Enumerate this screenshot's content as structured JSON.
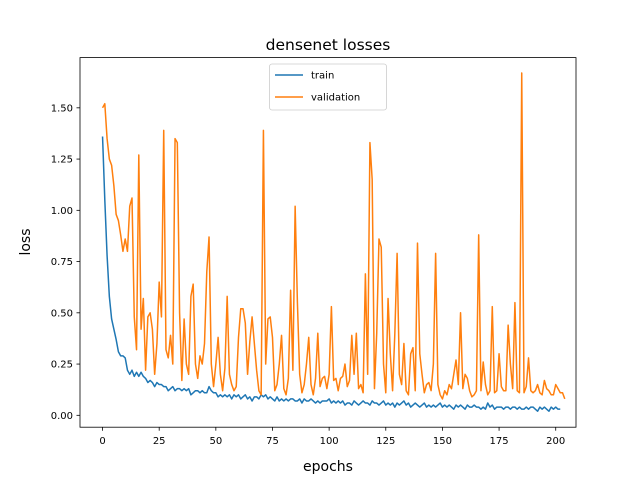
{
  "chart_data": {
    "type": "line",
    "title": "densenet losses",
    "xlabel": "epochs",
    "ylabel": "loss",
    "xlim": [
      -9.95,
      208.95
    ],
    "ylim": [
      -0.058,
      1.745
    ],
    "xticks": [
      0,
      25,
      50,
      75,
      100,
      125,
      150,
      175,
      200
    ],
    "yticks": [
      0.0,
      0.25,
      0.5,
      0.75,
      1.0,
      1.25,
      1.5
    ],
    "ytick_labels": [
      "0.00",
      "0.25",
      "0.50",
      "0.75",
      "1.00",
      "1.25",
      "1.50"
    ],
    "grid": false,
    "legend_position": "top-center",
    "series": [
      {
        "name": "train",
        "color": "#1f77b4",
        "values": [
          1.36,
          1.05,
          0.78,
          0.58,
          0.47,
          0.42,
          0.37,
          0.31,
          0.29,
          0.29,
          0.28,
          0.22,
          0.2,
          0.22,
          0.19,
          0.21,
          0.19,
          0.21,
          0.19,
          0.18,
          0.16,
          0.17,
          0.16,
          0.14,
          0.16,
          0.15,
          0.15,
          0.14,
          0.14,
          0.12,
          0.13,
          0.14,
          0.12,
          0.13,
          0.13,
          0.12,
          0.13,
          0.12,
          0.13,
          0.1,
          0.11,
          0.12,
          0.12,
          0.11,
          0.12,
          0.11,
          0.11,
          0.14,
          0.12,
          0.11,
          0.11,
          0.09,
          0.1,
          0.09,
          0.1,
          0.09,
          0.1,
          0.08,
          0.1,
          0.09,
          0.1,
          0.08,
          0.09,
          0.1,
          0.08,
          0.09,
          0.07,
          0.09,
          0.09,
          0.08,
          0.1,
          0.09,
          0.1,
          0.08,
          0.09,
          0.08,
          0.07,
          0.09,
          0.07,
          0.08,
          0.07,
          0.08,
          0.07,
          0.08,
          0.08,
          0.07,
          0.07,
          0.08,
          0.06,
          0.08,
          0.07,
          0.07,
          0.08,
          0.07,
          0.06,
          0.07,
          0.06,
          0.07,
          0.07,
          0.07,
          0.08,
          0.06,
          0.07,
          0.06,
          0.07,
          0.06,
          0.07,
          0.05,
          0.06,
          0.06,
          0.05,
          0.07,
          0.06,
          0.05,
          0.06,
          0.07,
          0.06,
          0.06,
          0.05,
          0.07,
          0.06,
          0.06,
          0.05,
          0.06,
          0.07,
          0.05,
          0.06,
          0.05,
          0.06,
          0.04,
          0.06,
          0.05,
          0.06,
          0.07,
          0.05,
          0.06,
          0.04,
          0.05,
          0.06,
          0.05,
          0.04,
          0.05,
          0.06,
          0.04,
          0.05,
          0.04,
          0.05,
          0.04,
          0.05,
          0.06,
          0.04,
          0.05,
          0.04,
          0.05,
          0.04,
          0.03,
          0.05,
          0.04,
          0.05,
          0.04,
          0.03,
          0.05,
          0.04,
          0.04,
          0.05,
          0.04,
          0.04,
          0.03,
          0.04,
          0.03,
          0.06,
          0.04,
          0.05,
          0.03,
          0.04,
          0.04,
          0.04,
          0.03,
          0.04,
          0.04,
          0.03,
          0.04,
          0.04,
          0.03,
          0.04,
          0.03,
          0.03,
          0.04,
          0.03,
          0.04,
          0.04,
          0.03,
          0.02,
          0.04,
          0.03,
          0.04,
          0.03,
          0.02,
          0.04,
          0.03,
          0.04,
          0.03,
          0.03
        ]
      },
      {
        "name": "validation",
        "color": "#ff7f0e",
        "values": [
          1.5,
          1.52,
          1.35,
          1.25,
          1.22,
          1.12,
          0.98,
          0.95,
          0.88,
          0.8,
          0.86,
          0.8,
          1.02,
          1.06,
          0.48,
          0.32,
          1.27,
          0.42,
          0.57,
          0.22,
          0.48,
          0.5,
          0.42,
          0.2,
          0.35,
          0.65,
          0.48,
          1.39,
          0.32,
          0.28,
          0.39,
          0.25,
          1.35,
          1.33,
          0.5,
          0.17,
          0.47,
          0.25,
          0.2,
          0.58,
          0.64,
          0.25,
          0.18,
          0.29,
          0.25,
          0.35,
          0.7,
          0.87,
          0.25,
          0.14,
          0.25,
          0.38,
          0.2,
          0.12,
          0.23,
          0.58,
          0.2,
          0.15,
          0.12,
          0.14,
          0.38,
          0.52,
          0.52,
          0.45,
          0.2,
          0.36,
          0.48,
          0.35,
          0.22,
          0.12,
          0.1,
          1.39,
          0.25,
          0.47,
          0.48,
          0.38,
          0.12,
          0.15,
          0.25,
          0.39,
          0.13,
          0.1,
          0.18,
          0.61,
          0.22,
          1.02,
          0.55,
          0.2,
          0.11,
          0.15,
          0.25,
          0.38,
          0.15,
          0.1,
          0.18,
          0.4,
          0.14,
          0.18,
          0.19,
          0.13,
          0.2,
          0.53,
          0.17,
          0.18,
          0.12,
          0.18,
          0.19,
          0.25,
          0.14,
          0.17,
          0.39,
          0.2,
          0.4,
          0.13,
          0.15,
          0.11,
          0.69,
          0.2,
          1.33,
          1.15,
          0.13,
          0.4,
          0.86,
          0.82,
          0.25,
          0.11,
          0.57,
          0.3,
          0.12,
          0.4,
          0.79,
          0.2,
          0.15,
          0.35,
          0.12,
          0.1,
          0.3,
          0.33,
          0.12,
          0.84,
          0.3,
          0.2,
          0.11,
          0.15,
          0.16,
          0.12,
          0.25,
          0.79,
          0.15,
          0.1,
          0.08,
          0.12,
          0.1,
          0.15,
          0.13,
          0.2,
          0.27,
          0.15,
          0.5,
          0.13,
          0.2,
          0.18,
          0.12,
          0.09,
          0.1,
          0.12,
          0.88,
          0.12,
          0.26,
          0.15,
          0.1,
          0.12,
          0.53,
          0.11,
          0.12,
          0.3,
          0.14,
          0.12,
          0.12,
          0.44,
          0.25,
          0.13,
          0.55,
          0.12,
          0.11,
          1.67,
          0.11,
          0.14,
          0.28,
          0.12,
          0.11,
          0.12,
          0.15,
          0.11,
          0.1,
          0.17,
          0.13,
          0.12,
          0.1,
          0.1,
          0.15,
          0.13,
          0.11,
          0.11,
          0.08
        ]
      }
    ]
  }
}
